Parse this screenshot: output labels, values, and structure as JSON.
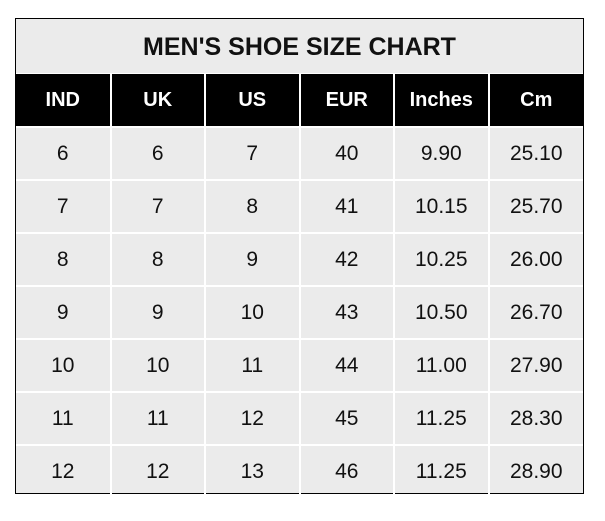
{
  "chart_data": {
    "type": "table",
    "title": "MEN'S SHOE SIZE CHART",
    "columns": [
      "IND",
      "UK",
      "US",
      "EUR",
      "Inches",
      "Cm"
    ],
    "rows": [
      [
        "6",
        "6",
        "7",
        "40",
        "9.90",
        "25.10"
      ],
      [
        "7",
        "7",
        "8",
        "41",
        "10.15",
        "25.70"
      ],
      [
        "8",
        "8",
        "9",
        "42",
        "10.25",
        "26.00"
      ],
      [
        "9",
        "9",
        "10",
        "43",
        "10.50",
        "26.70"
      ],
      [
        "10",
        "10",
        "11",
        "44",
        "11.00",
        "27.90"
      ],
      [
        "11",
        "11",
        "12",
        "45",
        "11.25",
        "28.30"
      ],
      [
        "12",
        "12",
        "13",
        "46",
        "11.25",
        "28.90"
      ]
    ]
  },
  "colors": {
    "header_bg": "#000000",
    "cell_bg": "#ebebeb",
    "grid": "#ffffff"
  }
}
